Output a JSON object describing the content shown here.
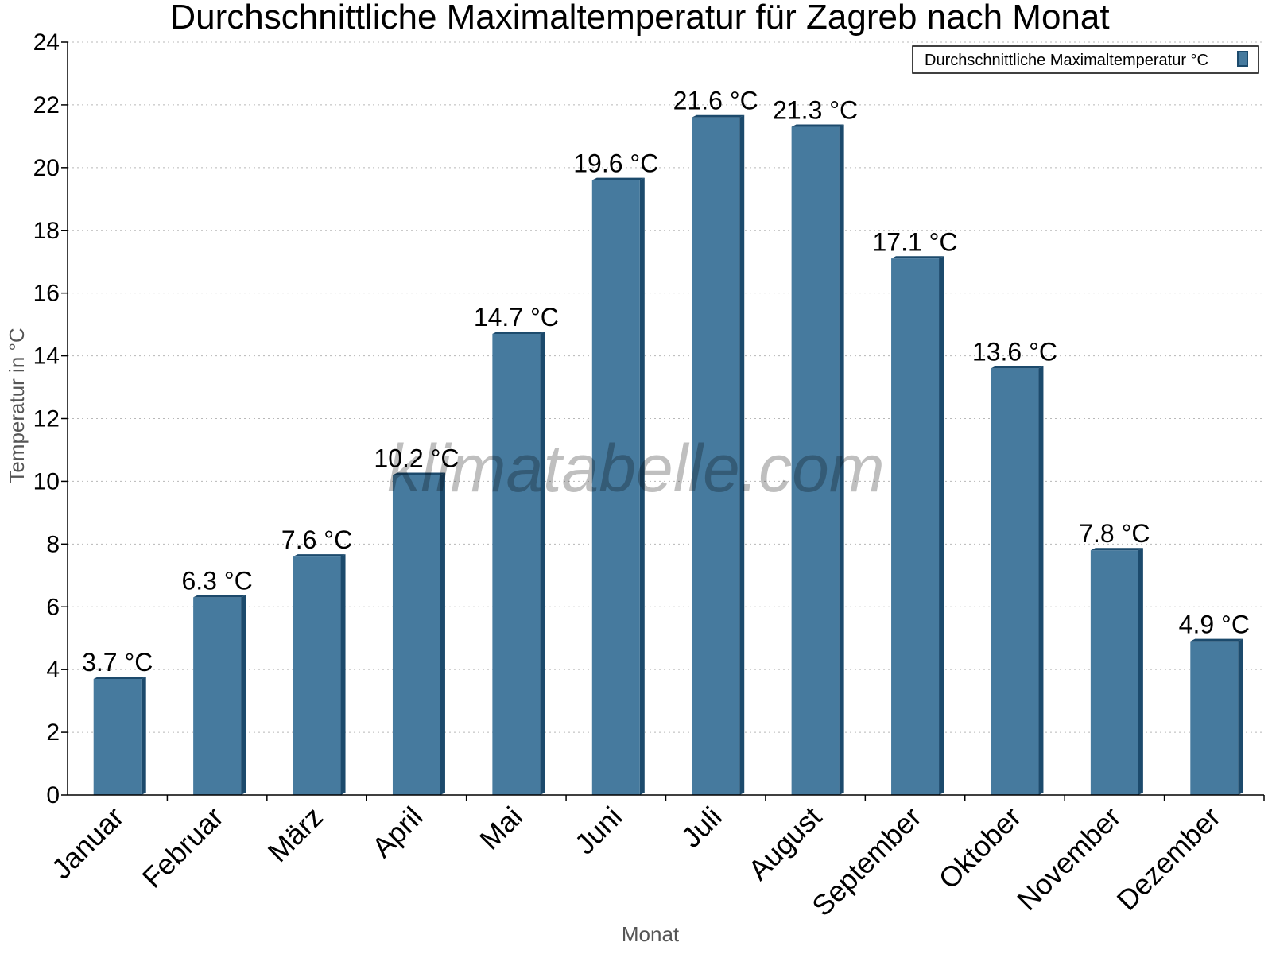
{
  "chart_data": {
    "type": "bar",
    "title": "Durchschnittliche Maximaltemperatur für Zagreb nach Monat",
    "xlabel": "Monat",
    "ylabel": "Temperatur in °C",
    "ylim": [
      0,
      24
    ],
    "yticks": [
      0,
      2,
      4,
      6,
      8,
      10,
      12,
      14,
      16,
      18,
      20,
      22,
      24
    ],
    "grid": true,
    "legend_position": "top-right",
    "categories": [
      "Januar",
      "Februar",
      "März",
      "April",
      "Mai",
      "Juni",
      "Juli",
      "August",
      "September",
      "Oktober",
      "November",
      "Dezember"
    ],
    "series": [
      {
        "name": "Durchschnittliche Maximaltemperatur °C",
        "color": "#467a9e",
        "values": [
          3.7,
          6.3,
          7.6,
          10.2,
          14.7,
          19.6,
          21.6,
          21.3,
          17.1,
          13.6,
          7.8,
          4.9
        ],
        "labels": [
          "3.7 °C",
          "6.3 °C",
          "7.6 °C",
          "10.2 °C",
          "14.7 °C",
          "19.6 °C",
          "21.6 °C",
          "21.3 °C",
          "17.1 °C",
          "13.6 °C",
          "7.8 °C",
          "4.9 °C"
        ]
      }
    ],
    "watermark": "klimatabelle.com"
  }
}
